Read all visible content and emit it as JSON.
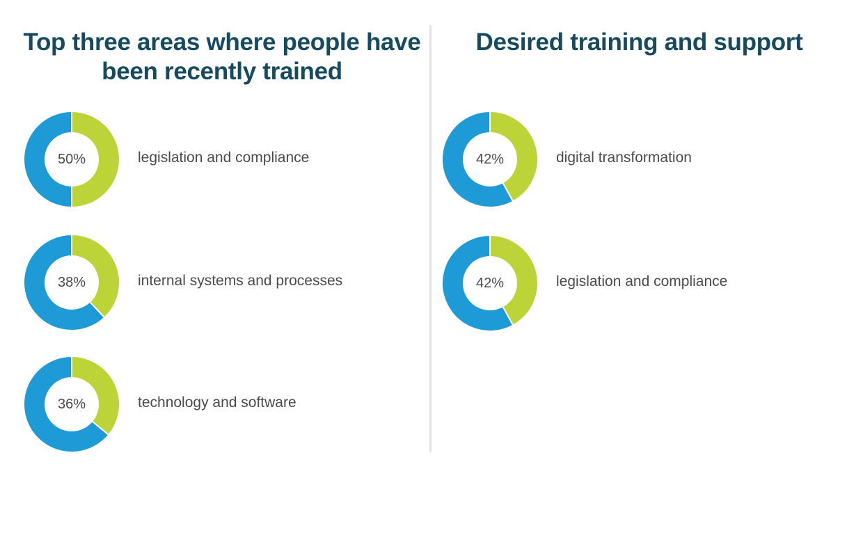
{
  "colors": {
    "highlight": "#bcd437",
    "remainder": "#1e9ad6",
    "title": "#154a5f",
    "label": "#4a4a4a",
    "divider": "#e3e3e3"
  },
  "chart_data": [
    {
      "type": "donut",
      "title": "Top three areas where people have been recently trained",
      "items": [
        {
          "label": "legislation and compliance",
          "value": 50,
          "value_label": "50%"
        },
        {
          "label": "internal systems and processes",
          "value": 38,
          "value_label": "38%"
        },
        {
          "label": "technology and software",
          "value": 36,
          "value_label": "36%"
        }
      ]
    },
    {
      "type": "donut",
      "title": "Desired training and support",
      "items": [
        {
          "label": "digital transformation",
          "value": 42,
          "value_label": "42%"
        },
        {
          "label": "legislation and compliance",
          "value": 42,
          "value_label": "42%"
        }
      ]
    }
  ]
}
